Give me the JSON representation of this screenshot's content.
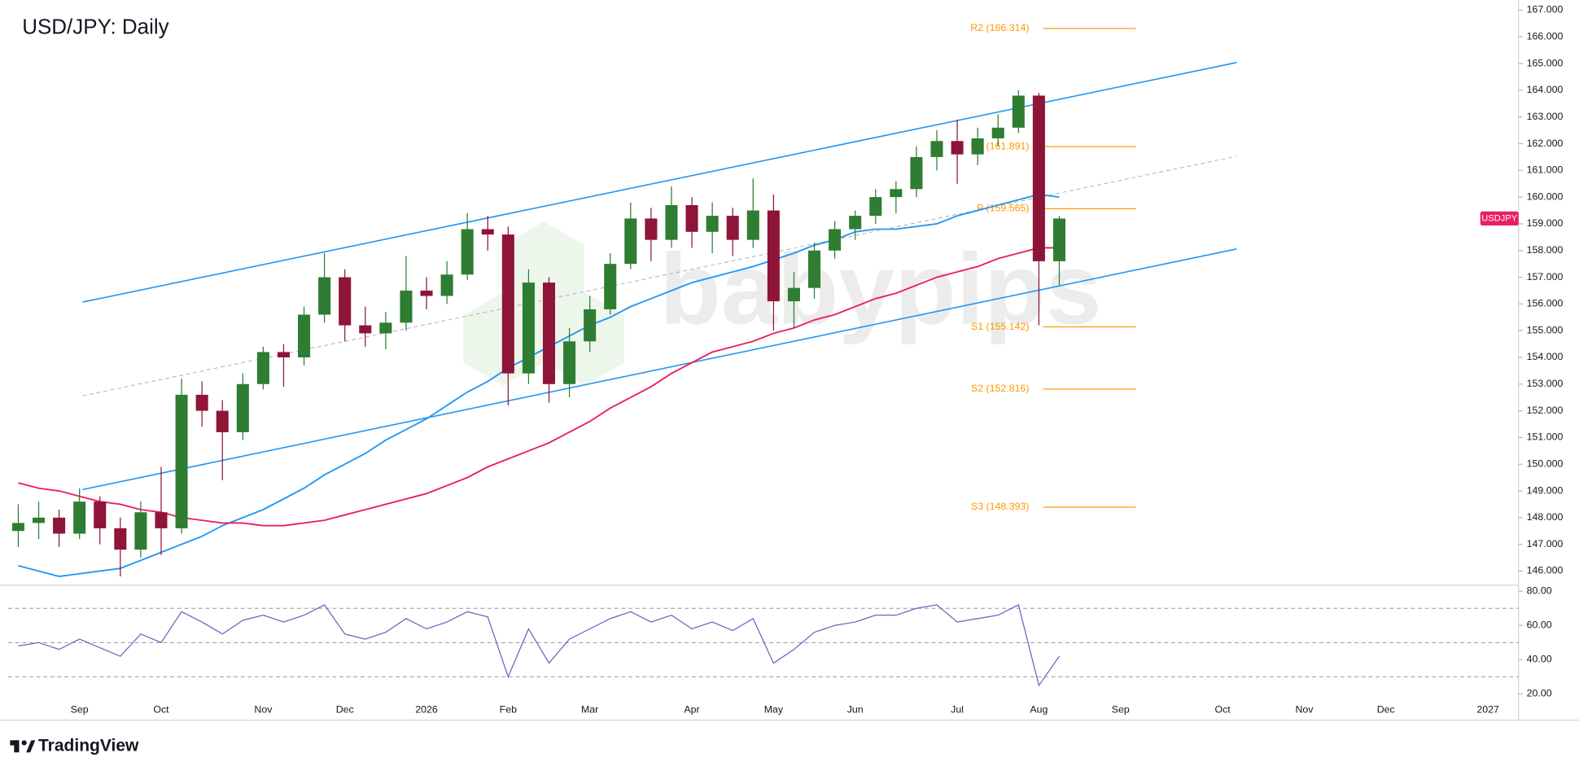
{
  "chart_data": [
    {
      "type": "candlestick",
      "title": "USD/JPY: Daily",
      "symbol": "USDJPY",
      "up_color": "#2e7d32",
      "down_color": "#8e1537",
      "categories": [
        null,
        null,
        null,
        "Sep",
        null,
        null,
        null,
        "Oct",
        null,
        null,
        null,
        null,
        "Nov",
        null,
        null,
        null,
        "Dec",
        null,
        null,
        null,
        "2026",
        null,
        null,
        null,
        "Feb",
        null,
        null,
        null,
        "Mar",
        null,
        null,
        null,
        null,
        "Apr",
        null,
        null,
        null,
        "May",
        null,
        null,
        null,
        "Jun",
        null,
        null,
        null,
        null,
        "Jul",
        null,
        null,
        null,
        "Aug",
        null,
        null,
        null,
        "Sep",
        null,
        null,
        null,
        null,
        "Oct",
        null,
        null,
        null,
        "Nov",
        null,
        null,
        null,
        "Dec",
        null,
        null,
        null,
        null,
        "2027",
        null
      ],
      "open": [
        147.5,
        147.8,
        148.0,
        147.4,
        148.6,
        147.6,
        146.8,
        148.2,
        147.6,
        152.6,
        152.0,
        151.2,
        153.0,
        154.2,
        154.0,
        155.6,
        157.0,
        155.2,
        154.9,
        155.3,
        156.5,
        156.3,
        157.1,
        158.8,
        158.6,
        153.4,
        156.8,
        153.0,
        154.6,
        155.8,
        157.5,
        159.2,
        158.4,
        159.7,
        158.7,
        159.3,
        158.4,
        159.5,
        156.1,
        156.6,
        158.0,
        158.8,
        159.3,
        160.0,
        160.3,
        161.5,
        162.1,
        161.6,
        162.2,
        162.6,
        163.8,
        157.6,
        null,
        null,
        null,
        null,
        null,
        null,
        null,
        null,
        null,
        null,
        null,
        null,
        null,
        null,
        null,
        null,
        null,
        null,
        null,
        null,
        null,
        null
      ],
      "high": [
        148.5,
        148.6,
        148.3,
        149.1,
        148.8,
        148.0,
        148.6,
        149.9,
        153.2,
        153.1,
        152.4,
        153.4,
        154.4,
        154.5,
        155.9,
        157.9,
        157.3,
        155.9,
        155.7,
        157.8,
        157.0,
        157.6,
        159.4,
        159.3,
        158.9,
        157.3,
        157.0,
        155.1,
        156.3,
        157.9,
        159.8,
        159.6,
        160.4,
        160.0,
        159.8,
        159.6,
        160.7,
        160.1,
        157.2,
        158.3,
        159.1,
        159.5,
        160.3,
        160.6,
        161.9,
        162.5,
        162.9,
        162.6,
        163.1,
        164.0,
        163.9,
        159.3,
        null,
        null,
        null,
        null,
        null,
        null,
        null,
        null,
        null,
        null,
        null,
        null,
        null,
        null,
        null,
        null,
        null,
        null,
        null,
        null,
        null,
        null
      ],
      "low": [
        146.9,
        147.2,
        146.9,
        147.2,
        147.0,
        145.8,
        146.5,
        146.6,
        147.4,
        151.4,
        149.4,
        150.9,
        152.8,
        152.9,
        153.7,
        155.3,
        154.6,
        154.4,
        154.3,
        155.0,
        155.8,
        156.0,
        156.9,
        158.0,
        152.2,
        153.0,
        152.3,
        152.5,
        154.2,
        155.6,
        157.3,
        157.6,
        158.1,
        158.1,
        157.9,
        157.8,
        158.1,
        155.0,
        155.1,
        156.2,
        157.7,
        158.4,
        159.0,
        159.4,
        160.0,
        161.0,
        160.5,
        161.2,
        161.9,
        162.4,
        155.2,
        156.7,
        null,
        null,
        null,
        null,
        null,
        null,
        null,
        null,
        null,
        null,
        null,
        null,
        null,
        null,
        null,
        null,
        null,
        null,
        null,
        null,
        null,
        null
      ],
      "close": [
        147.8,
        148.0,
        147.4,
        148.6,
        147.6,
        146.8,
        148.2,
        147.6,
        152.6,
        152.0,
        151.2,
        153.0,
        154.2,
        154.0,
        155.6,
        157.0,
        155.2,
        154.9,
        155.3,
        156.5,
        156.3,
        157.1,
        158.8,
        158.6,
        153.4,
        156.8,
        153.0,
        154.6,
        155.8,
        157.5,
        159.2,
        158.4,
        159.7,
        158.7,
        159.3,
        158.4,
        159.5,
        156.1,
        156.6,
        158.0,
        158.8,
        159.3,
        160.0,
        160.3,
        161.5,
        162.1,
        161.6,
        162.2,
        162.6,
        163.8,
        157.6,
        159.2,
        null,
        null,
        null,
        null,
        null,
        null,
        null,
        null,
        null,
        null,
        null,
        null,
        null,
        null,
        null,
        null,
        null,
        null,
        null,
        null,
        null,
        null
      ],
      "series": [
        {
          "color": "#2196f3",
          "values": [
            146.2,
            146.0,
            145.8,
            145.9,
            146.0,
            146.1,
            146.4,
            146.7,
            147.0,
            147.3,
            147.7,
            148.0,
            148.3,
            148.7,
            149.1,
            149.6,
            150.0,
            150.4,
            150.9,
            151.3,
            151.7,
            152.2,
            152.7,
            153.1,
            153.6,
            154.0,
            154.4,
            154.8,
            155.2,
            155.5,
            155.9,
            156.2,
            156.5,
            156.8,
            157.0,
            157.2,
            157.4,
            157.65,
            157.9,
            158.2,
            158.4,
            158.7,
            158.8,
            158.8,
            158.9,
            159.0,
            159.3,
            159.5,
            159.7,
            159.9,
            160.1,
            160.0,
            null,
            null,
            null,
            null,
            null,
            null,
            null,
            null,
            null,
            null,
            null,
            null,
            null,
            null,
            null,
            null,
            null,
            null,
            null,
            null,
            null,
            null
          ]
        },
        {
          "color": "#e91e63",
          "values": [
            149.3,
            149.1,
            149.0,
            148.8,
            148.6,
            148.5,
            148.3,
            148.2,
            148.0,
            147.9,
            147.8,
            147.8,
            147.7,
            147.7,
            147.8,
            147.9,
            148.1,
            148.3,
            148.5,
            148.7,
            148.9,
            149.2,
            149.5,
            149.9,
            150.2,
            150.5,
            150.8,
            151.2,
            151.6,
            152.1,
            152.5,
            152.9,
            153.4,
            153.8,
            154.2,
            154.4,
            154.6,
            154.9,
            155.1,
            155.4,
            155.6,
            155.9,
            156.2,
            156.4,
            156.7,
            157.0,
            157.2,
            157.4,
            157.7,
            157.9,
            158.1,
            158.1,
            null,
            null,
            null,
            null,
            null,
            null,
            null,
            null,
            null,
            null,
            null,
            null,
            null,
            null,
            null,
            null,
            null,
            null,
            null,
            null,
            null,
            null
          ]
        }
      ],
      "channel": {
        "color": "#2196f3",
        "mid_color": "#b0b0b0",
        "upper": [
          156.07,
          165.04
        ],
        "lower": [
          149.05,
          158.06
        ],
        "middle": [
          152.56,
          161.53
        ]
      },
      "pivots": {
        "color": "#ff9800",
        "levels": [
          {
            "value": 166.314,
            "label": "R2 (166.314)"
          },
          {
            "value": 161.891,
            "label": "R1 (161.891)"
          },
          {
            "value": 159.565,
            "label": "P (159.565)"
          },
          {
            "value": 155.142,
            "label": "S1 (155.142)"
          },
          {
            "value": 152.816,
            "label": "S2 (152.816)"
          },
          {
            "value": 148.393,
            "label": "S3 (148.393)"
          }
        ]
      },
      "ylim": [
        145.47,
        167.38
      ],
      "yticks": [
        {
          "value": 146,
          "label": "146.000"
        },
        {
          "value": 147,
          "label": "147.000"
        },
        {
          "value": 148,
          "label": "148.000"
        },
        {
          "value": 149,
          "label": "149.000"
        },
        {
          "value": 150,
          "label": "150.000"
        },
        {
          "value": 151,
          "label": "151.000"
        },
        {
          "value": 152,
          "label": "152.000"
        },
        {
          "value": 153,
          "label": "153.000"
        },
        {
          "value": 154,
          "label": "154.000"
        },
        {
          "value": 155,
          "label": "155.000"
        },
        {
          "value": 156,
          "label": "156.000"
        },
        {
          "value": 157,
          "label": "157.000"
        },
        {
          "value": 158,
          "label": "158.000"
        },
        {
          "value": 159,
          "label": "159.000"
        },
        {
          "value": 160,
          "label": "160.000"
        },
        {
          "value": 161,
          "label": "161.000"
        },
        {
          "value": 162,
          "label": "162.000"
        },
        {
          "value": 163,
          "label": "163.000"
        },
        {
          "value": 164,
          "label": "164.000"
        },
        {
          "value": 165,
          "label": "165.000"
        },
        {
          "value": 166,
          "label": "166.000"
        },
        {
          "value": 167,
          "label": "167.000"
        }
      ],
      "watermark": "babypips"
    },
    {
      "type": "line",
      "color": "#7e57c2",
      "values": [
        48,
        50,
        46,
        52,
        47,
        42,
        55,
        50,
        68,
        62,
        55,
        63,
        66,
        62,
        66,
        72,
        55,
        52,
        56,
        64,
        58,
        62,
        68,
        65,
        30,
        58,
        38,
        52,
        58,
        64,
        68,
        62,
        66,
        58,
        62,
        57,
        64,
        38,
        46,
        56,
        60,
        62,
        66,
        66,
        70,
        72,
        62,
        64,
        66,
        72,
        25,
        42,
        null,
        null,
        null,
        null,
        null,
        null,
        null,
        null,
        null,
        null,
        null,
        null,
        null,
        null,
        null,
        null,
        null,
        null,
        null,
        null,
        null,
        null
      ],
      "levels": [
        70,
        50,
        30
      ],
      "ylim": [
        19.4,
        83.5
      ],
      "yticks": [
        {
          "value": 20,
          "label": "20.00"
        },
        {
          "value": 40,
          "label": "40.00"
        },
        {
          "value": 60,
          "label": "60.00"
        },
        {
          "value": 80,
          "label": "80.00"
        }
      ]
    }
  ],
  "logo": "TradingView"
}
